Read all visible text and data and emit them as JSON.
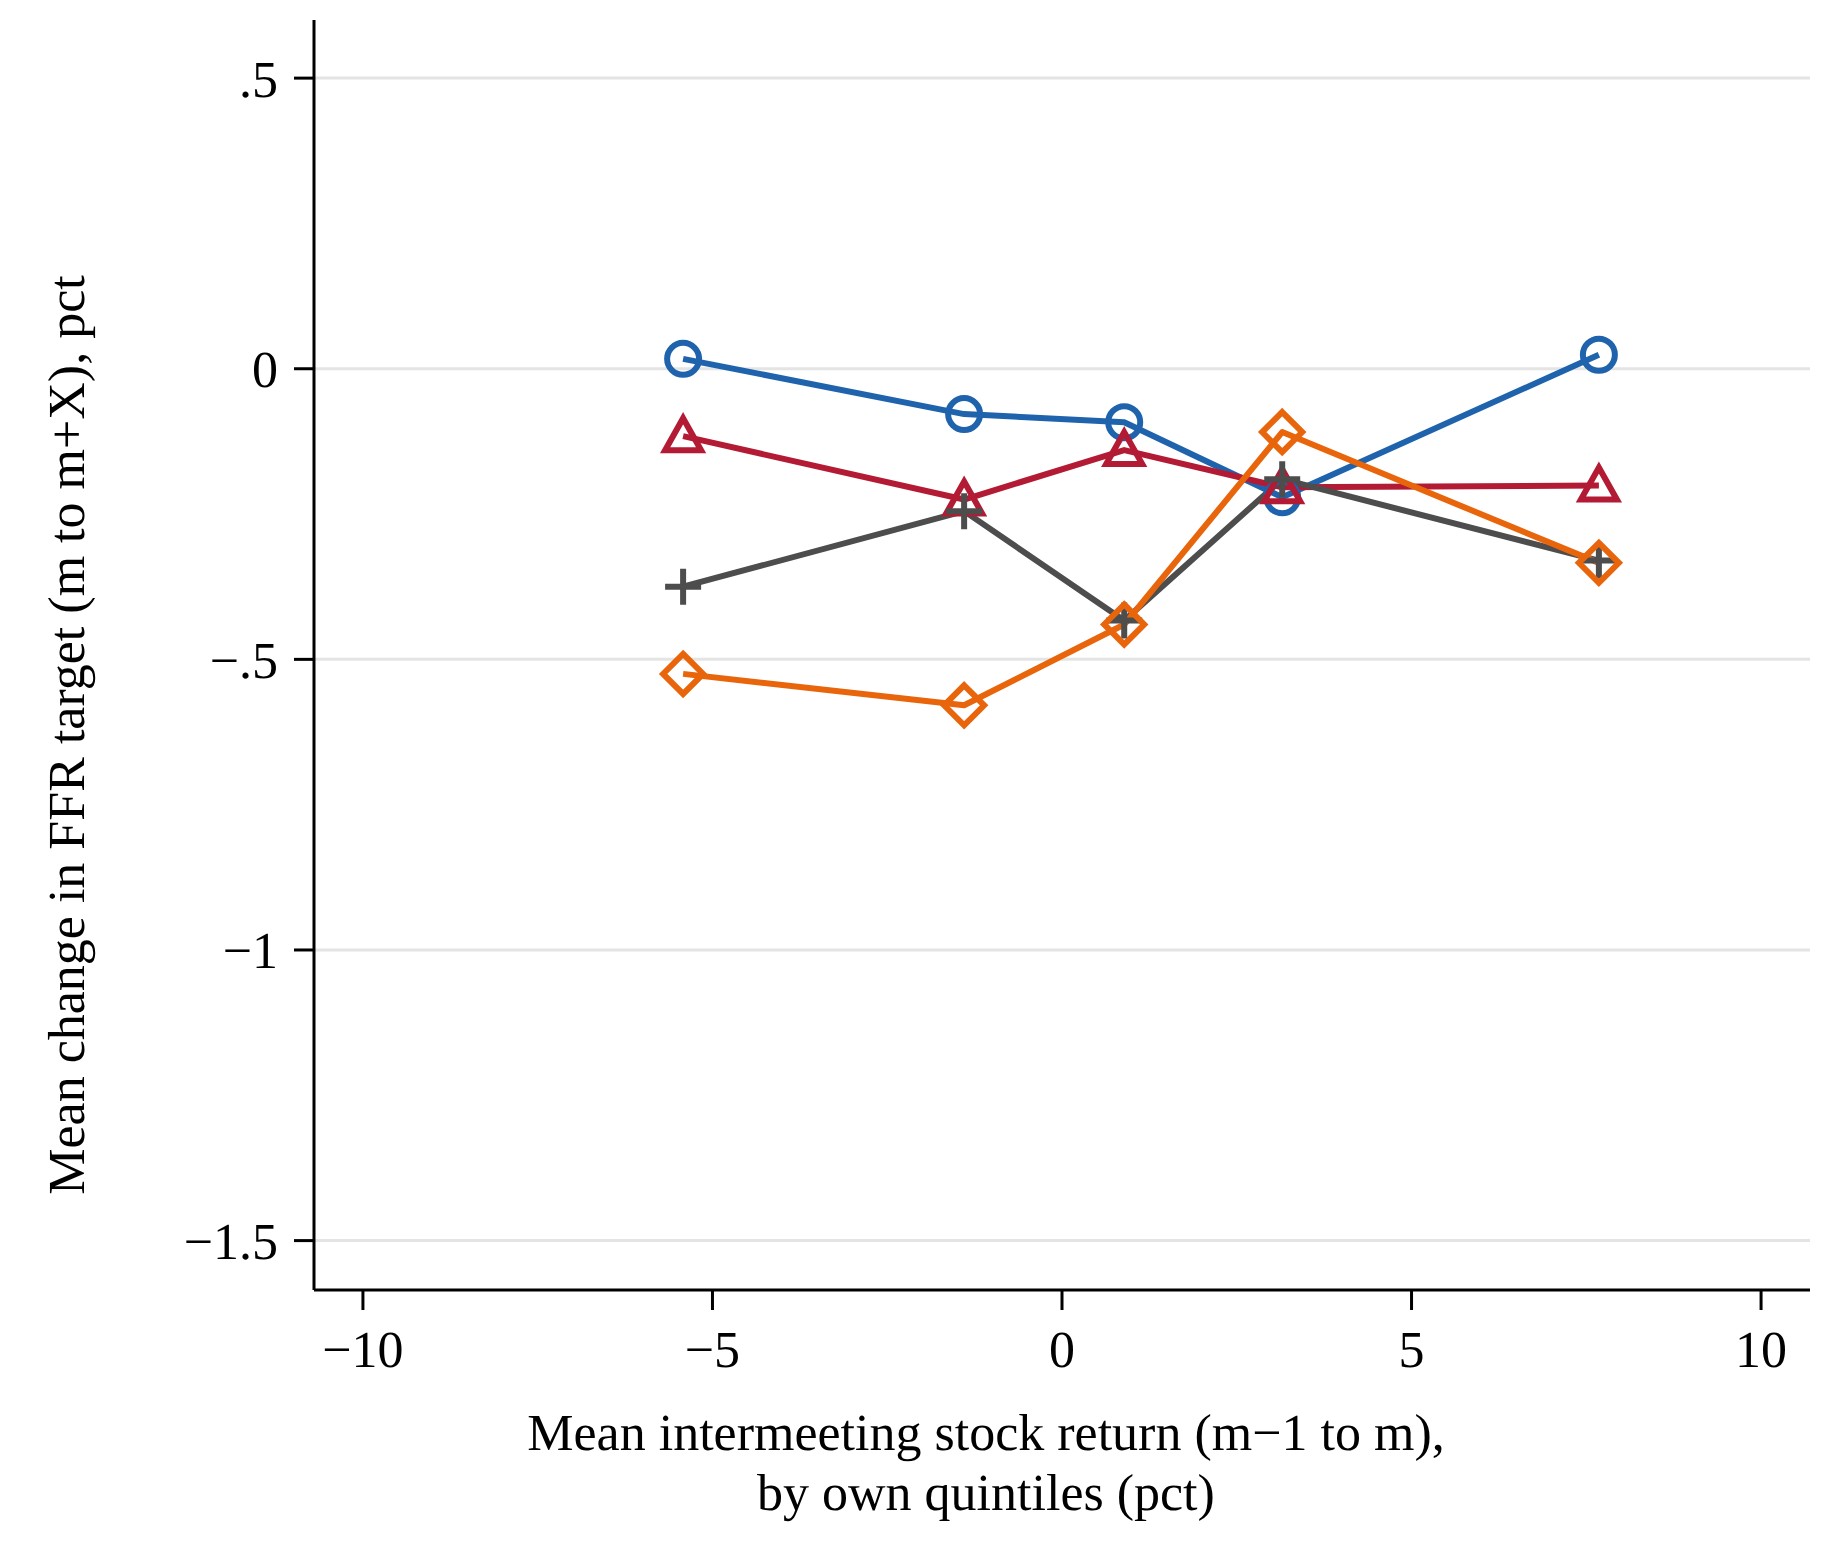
{
  "chart_data": {
    "type": "line",
    "xlabel": "Mean intermeeting stock return (m−1 to m), by own quintiles (pct)",
    "ylabel": "Mean change in FFR target (m to m+X), pct",
    "x": [
      -5.42,
      -1.4,
      0.89,
      3.15,
      7.68
    ],
    "xlim": [
      -10.7,
      10.7
    ],
    "xticks": [
      {
        "value": -10,
        "label": "−10"
      },
      {
        "value": -5,
        "label": "−5"
      },
      0,
      5,
      10
    ],
    "ylim": [
      -1.585,
      0.6
    ],
    "yticks": [
      {
        "value": -1.5,
        "label": "−1.5"
      },
      {
        "value": -1,
        "label": "−1"
      },
      {
        "value": -0.5,
        "label": "−.5"
      },
      0,
      {
        "value": 0.5,
        "label": ".5"
      }
    ],
    "grid": "y",
    "line_style": "solid",
    "series": [
      {
        "color": "#1f63ad",
        "marker": "circle",
        "values": [
          0.017,
          -0.078,
          -0.092,
          -0.221,
          0.024
        ]
      },
      {
        "color": "#b31b34",
        "marker": "triangle",
        "values": [
          -0.116,
          -0.225,
          -0.14,
          -0.204,
          -0.201
        ]
      },
      {
        "color": "#4d4d4d",
        "marker": "cross",
        "values": [
          -0.375,
          -0.245,
          -0.433,
          -0.19,
          -0.33
        ]
      },
      {
        "color": "#e8650c",
        "marker": "diamond",
        "values": [
          -0.525,
          -0.579,
          -0.44,
          -0.109,
          -0.334
        ]
      }
    ]
  }
}
